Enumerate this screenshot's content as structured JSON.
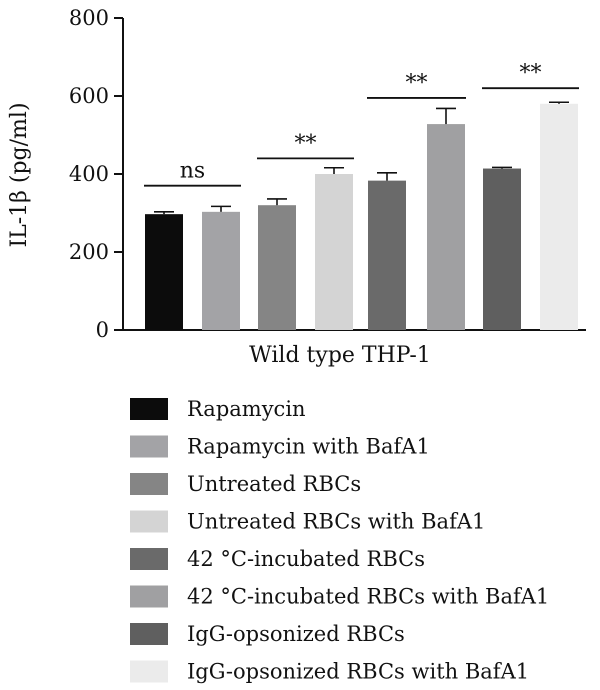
{
  "chart_data": {
    "type": "bar",
    "ylabel": "IL-1β (pg/ml)",
    "xlabel": "Wild type THP-1",
    "ylim": [
      0,
      800
    ],
    "yticks": [
      0,
      200,
      400,
      600,
      800
    ],
    "legend_position": "bottom",
    "series": [
      {
        "name": "Rapamycin",
        "value": 297,
        "error": 6,
        "color": "#0c0c0c"
      },
      {
        "name": "Rapamycin with BafA1",
        "value": 303,
        "error": 14,
        "color": "#a3a3a6"
      },
      {
        "name": "Untreated RBCs",
        "value": 320,
        "error": 16,
        "color": "#858585"
      },
      {
        "name": "Untreated RBCs with BafA1",
        "value": 400,
        "error": 16,
        "color": "#d4d4d4"
      },
      {
        "name": "42 °C-incubated RBCs",
        "value": 383,
        "error": 20,
        "color": "#6a6a6a"
      },
      {
        "name": "42 °C-incubated RBCs with BafA1",
        "value": 528,
        "error": 40,
        "color": "#a0a0a2"
      },
      {
        "name": "IgG-opsonized RBCs",
        "value": 414,
        "error": 3,
        "color": "#5f5f5f"
      },
      {
        "name": "IgG-opsonized RBCs with BafA1",
        "value": 580,
        "error": 4,
        "color": "#ebebeb"
      }
    ],
    "significance": [
      {
        "pair": [
          0,
          1
        ],
        "label": "ns",
        "y": 370
      },
      {
        "pair": [
          2,
          3
        ],
        "label": "**",
        "y": 440
      },
      {
        "pair": [
          4,
          5
        ],
        "label": "**",
        "y": 595
      },
      {
        "pair": [
          6,
          7
        ],
        "label": "**",
        "y": 620
      }
    ]
  }
}
